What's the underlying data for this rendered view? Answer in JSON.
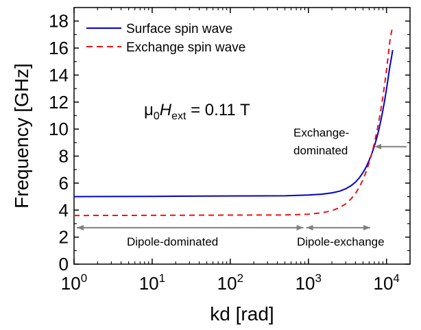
{
  "chart_data": {
    "type": "line",
    "xlabel": "kd [rad]",
    "ylabel": "Frequency [GHz]",
    "xscale": "log",
    "xlim": [
      1,
      20000
    ],
    "ylim": [
      0,
      19
    ],
    "x_ticks": [
      {
        "value": 1,
        "base": "10",
        "exp": "0"
      },
      {
        "value": 10,
        "base": "10",
        "exp": "1"
      },
      {
        "value": 100,
        "base": "10",
        "exp": "2"
      },
      {
        "value": 1000,
        "base": "10",
        "exp": "3"
      },
      {
        "value": 10000,
        "base": "10",
        "exp": "4"
      }
    ],
    "y_ticks": [
      0,
      2,
      4,
      6,
      8,
      10,
      12,
      14,
      16,
      18
    ],
    "grid": false,
    "legend_position": "top-left",
    "series": [
      {
        "name": "Surface spin wave",
        "color": "#0000cc",
        "style": "solid",
        "x": [
          1,
          10,
          100,
          500,
          1000,
          1500,
          2000,
          2500,
          3000,
          3500,
          4000,
          4500,
          5000,
          5500,
          6000,
          6500,
          7000,
          7500,
          8000,
          8500,
          9000,
          9500,
          10000,
          10500,
          11000,
          11500,
          12000
        ],
        "y": [
          5.0,
          5.02,
          5.05,
          5.06,
          5.12,
          5.18,
          5.28,
          5.4,
          5.58,
          5.8,
          6.07,
          6.4,
          6.78,
          7.2,
          7.68,
          8.2,
          8.76,
          9.35,
          10.0,
          10.7,
          11.42,
          12.18,
          12.96,
          13.78,
          14.6,
          15.2,
          15.85
        ]
      },
      {
        "name": "Exchange spin wave",
        "color": "#ee1111",
        "style": "dashed",
        "x": [
          1,
          10,
          100,
          500,
          1000,
          1500,
          2000,
          2500,
          3000,
          3500,
          4000,
          4500,
          5000,
          5500,
          6000,
          6500,
          7000,
          7500,
          8000,
          8500,
          9000,
          9500,
          10000,
          10500,
          11000,
          11500,
          12000
        ],
        "y": [
          3.6,
          3.61,
          3.63,
          3.64,
          3.7,
          3.8,
          3.96,
          4.18,
          4.46,
          4.82,
          5.23,
          5.72,
          6.26,
          6.86,
          7.52,
          8.22,
          8.98,
          9.78,
          10.62,
          11.5,
          12.42,
          13.38,
          14.38,
          15.4,
          16.46,
          17.1,
          17.6
        ]
      }
    ],
    "annotations": {
      "formula": {
        "mu": "μ",
        "zero": "0",
        "h": "H",
        "ext": "ext",
        "rest": " = 0.11 T"
      },
      "exchange_line1": "Exchange-",
      "exchange_line2": "dominated",
      "dipole_dominated": "Dipole-dominated",
      "dipole_exchange": "Dipole-exchange"
    },
    "regions": {
      "dipole_dominated": [
        1,
        900
      ],
      "dipole_exchange": [
        900,
        6200
      ],
      "exchange_arrow": {
        "from_x": 18000,
        "to_x": 7000,
        "y": 8.7
      },
      "arrow_y": 2.7
    },
    "colors": {
      "axis": "#000000",
      "arrow": "#808080"
    }
  }
}
